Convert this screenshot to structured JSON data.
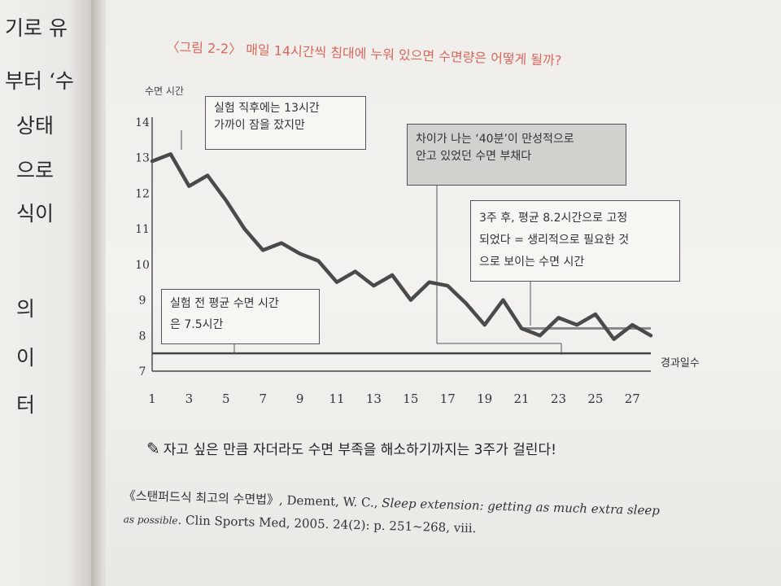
{
  "left_page": {
    "fragments": [
      "기로 유",
      "부터 ‘수",
      "상태",
      "으로",
      "식이",
      "의",
      "이",
      "터"
    ]
  },
  "figure": {
    "title": "〈그림 2-2〉 매일 14시간씩 침대에 누워 있으면 수면량은 어떻게 될까?",
    "caption": "자고 싶은 만큼 자더라도 수면 부족을 해소하기까지는 3주가 걸린다!",
    "annotations": {
      "first": [
        "실험 직후에는 13시간",
        "가까이 잠을 잤지만"
      ],
      "gap": [
        "차이가 나는 ‘40분’이 만성적으로",
        "안고 있었던 수면 부채다"
      ],
      "after": [
        "3주 후, 평균 8.2시간으로 고정",
        "되었다 = 생리적으로 필요한 것",
        "으로 보이는 수면 시간"
      ],
      "baseline": [
        "실험 전 평균 수면 시간",
        "은 7.5시간"
      ]
    }
  },
  "reference": {
    "book": "《스탠퍼드식 최고의 수면법》,",
    "authors": " Dement, W. C., ",
    "article": "Sleep extension: getting as much extra sleep",
    "article_cont": "as possible",
    "journal": ". Clin Sports Med, 2005. 24(2): p. 251~268, viii."
  },
  "chart_data": {
    "type": "line",
    "ylabel": "수면 시간",
    "xlabel": "경과일수",
    "ylim": [
      7,
      14
    ],
    "xlim": [
      1,
      28
    ],
    "x_ticks": [
      1,
      3,
      5,
      7,
      9,
      11,
      13,
      15,
      17,
      19,
      21,
      23,
      25,
      27
    ],
    "y_ticks": [
      7,
      8,
      9,
      10,
      11,
      12,
      13,
      14
    ],
    "grid": false,
    "series": [
      {
        "x": [
          1,
          2,
          3,
          4,
          5,
          6,
          7,
          8,
          9,
          10,
          11,
          12,
          13,
          14,
          15,
          16,
          17,
          18,
          19,
          20,
          21,
          22,
          23,
          24,
          25,
          26,
          27,
          28
        ],
        "values": [
          12.9,
          13.1,
          12.2,
          12.5,
          11.8,
          11.0,
          10.4,
          10.6,
          10.3,
          10.1,
          9.5,
          9.8,
          9.4,
          9.7,
          9.0,
          9.5,
          9.4,
          8.9,
          8.3,
          9.0,
          8.2,
          8.0,
          8.5,
          8.3,
          8.6,
          7.9,
          8.3,
          8.0
        ]
      }
    ],
    "reference_lines": [
      {
        "value": 7.5,
        "from_x": 1,
        "to_x": 28
      },
      {
        "value": 8.2,
        "from_x": 21,
        "to_x": 28
      }
    ],
    "colors": {
      "line": "#4a4a4a",
      "reference_828": "#8a8a8a",
      "title": "#d9675d"
    }
  }
}
